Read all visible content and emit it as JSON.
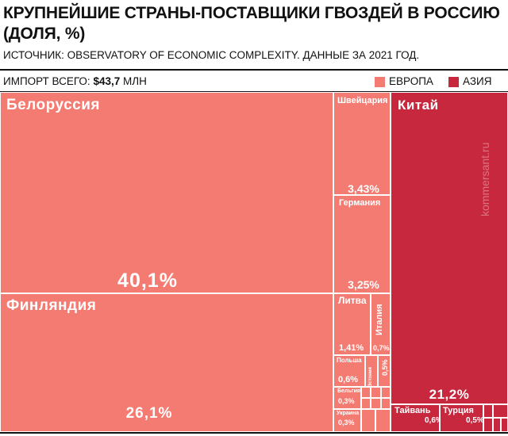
{
  "header": {
    "title": "КРУПНЕЙШИЕ СТРАНЫ-ПОСТАВЩИКИ ГВОЗДЕЙ В РОССИЮ (ДОЛЯ, %)",
    "subtitle": "ИСТОЧНИК: OBSERVATORY OF ECONOMIC COMPLEXITY. ДАННЫЕ ЗА 2021 ГОД.",
    "import_label": "ИМПОРТ ВСЕГО:",
    "import_value": "$43,7",
    "import_unit": "МЛН"
  },
  "watermark": "kommersant.ru",
  "chart_data": {
    "type": "treemap",
    "title": "КРУПНЕЙШИЕ СТРАНЫ-ПОСТАВЩИКИ ГВОЗДЕЙ В РОССИЮ (ДОЛЯ, %)",
    "unit": "%",
    "legend": [
      {
        "label": "ЕВРОПА",
        "color": "#f47b72"
      },
      {
        "label": "АЗИЯ",
        "color": "#c7283e"
      }
    ],
    "groups": [
      {
        "name": "ЕВРОПА",
        "color": "#f47b72",
        "items": [
          {
            "name": "Белоруссия",
            "value": 40.1,
            "value_label": "40,1%"
          },
          {
            "name": "Финляндия",
            "value": 26.1,
            "value_label": "26,1%"
          },
          {
            "name": "Швейцария",
            "value": 3.43,
            "value_label": "3,43%"
          },
          {
            "name": "Германия",
            "value": 3.25,
            "value_label": "3,25%"
          },
          {
            "name": "Литва",
            "value": 1.41,
            "value_label": "1,41%"
          },
          {
            "name": "Италия",
            "value": 0.7,
            "value_label": "0,7%"
          },
          {
            "name": "Польша",
            "value": 0.6,
            "value_label": "0,6%"
          },
          {
            "name": "Эстония",
            "value": 0.5,
            "value_label": "0,5%"
          },
          {
            "name": "Бельгия",
            "value": 0.3,
            "value_label": "0,3%"
          },
          {
            "name": "Украина",
            "value": 0.3,
            "value_label": "0,3%"
          }
        ]
      },
      {
        "name": "АЗИЯ",
        "color": "#c7283e",
        "items": [
          {
            "name": "Китай",
            "value": 21.2,
            "value_label": "21,2%"
          },
          {
            "name": "Тайвань",
            "value": 0.6,
            "value_label": "0,6%"
          },
          {
            "name": "Турция",
            "value": 0.5,
            "value_label": "0,5%"
          }
        ]
      }
    ]
  }
}
